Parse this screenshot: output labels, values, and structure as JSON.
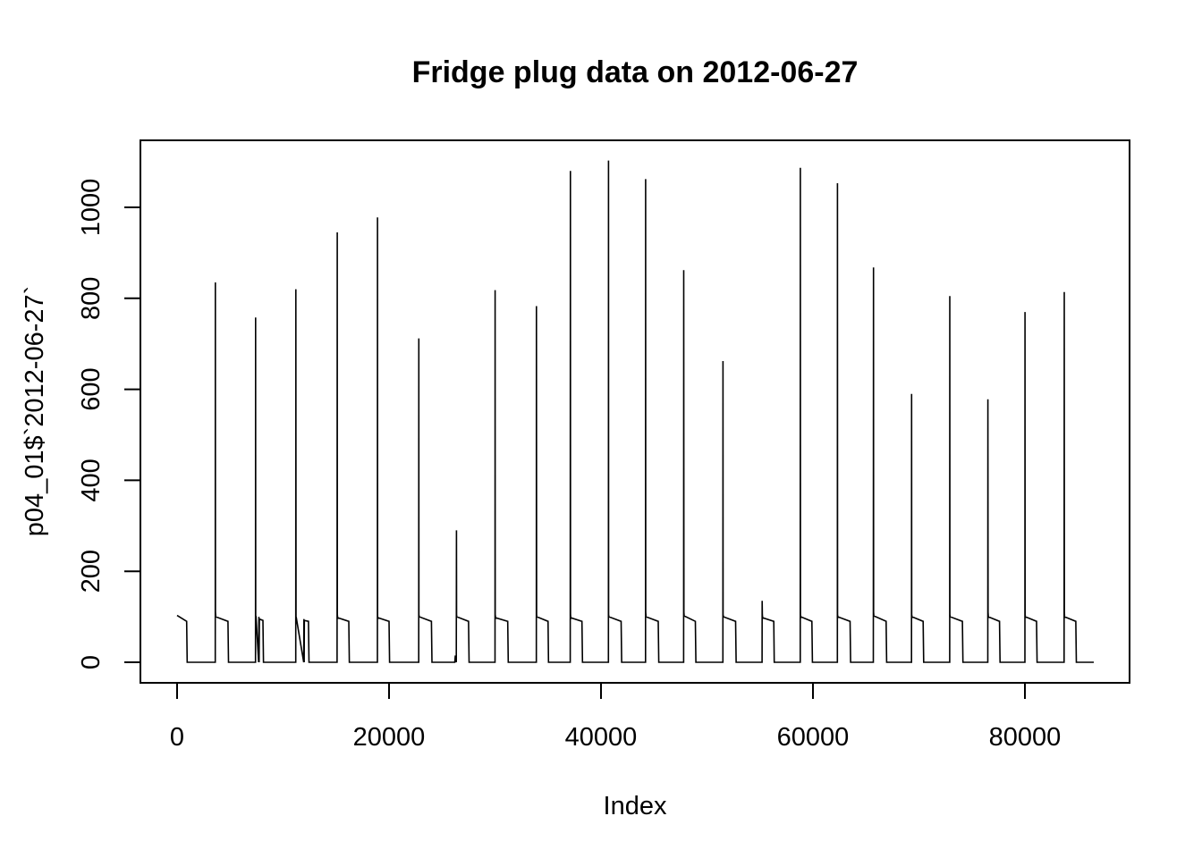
{
  "chart_data": {
    "type": "line",
    "title": "Fridge plug data on 2012-06-27",
    "xlabel": "Index",
    "ylabel": "p04_01$`2012-06-27`",
    "xlim": [
      0,
      86400
    ],
    "ylim": [
      0,
      1105
    ],
    "x_ticks": [
      0,
      20000,
      40000,
      60000,
      80000
    ],
    "x_tick_labels": [
      "0",
      "20000",
      "40000",
      "60000",
      "80000"
    ],
    "y_ticks": [
      0,
      200,
      400,
      600,
      800,
      1000
    ],
    "y_tick_labels": [
      "0",
      "200",
      "400",
      "600",
      "800",
      "1000"
    ],
    "grid": false,
    "legend": "none",
    "line_color": "#000000",
    "series": [
      {
        "x": [
          0,
          900,
          950,
          3600,
          3610,
          3620,
          3650,
          4800,
          4850,
          7400,
          7410,
          7420,
          7450,
          7700,
          7720,
          7740,
          7760,
          8100,
          8150,
          11200,
          11210,
          11220,
          11250,
          11950,
          11970,
          11990,
          12010,
          12400,
          12450,
          15100,
          15110,
          15120,
          15150,
          16200,
          16250,
          18900,
          18910,
          18920,
          18950,
          20000,
          20050,
          22800,
          22810,
          22820,
          22850,
          24000,
          24050,
          26200,
          26250,
          26350,
          26360,
          26370,
          26400,
          27500,
          27550,
          30000,
          30010,
          30020,
          30050,
          31200,
          31250,
          33900,
          33910,
          33920,
          33950,
          35000,
          35050,
          37100,
          37110,
          37120,
          37150,
          38200,
          38250,
          40700,
          40710,
          40720,
          40750,
          41900,
          41950,
          44200,
          44210,
          44220,
          44250,
          45400,
          45450,
          47800,
          47810,
          47820,
          47850,
          48900,
          48950,
          51500,
          51510,
          51520,
          51550,
          52700,
          52750,
          55200,
          55210,
          55220,
          55250,
          56300,
          56350,
          58800,
          58810,
          58820,
          58850,
          59900,
          59950,
          62300,
          62310,
          62320,
          62350,
          63500,
          63550,
          65700,
          65710,
          65720,
          65750,
          66900,
          66950,
          69300,
          69310,
          69320,
          69350,
          70400,
          70450,
          72900,
          72910,
          72920,
          72950,
          74100,
          74150,
          76500,
          76510,
          76520,
          76550,
          77600,
          77650,
          80000,
          80010,
          80020,
          80050,
          81100,
          81150,
          83700,
          83710,
          83720,
          83750,
          84800,
          84850,
          86500
        ],
        "y": [
          103,
          90,
          0,
          0,
          835,
          110,
          100,
          90,
          0,
          0,
          758,
          100,
          100,
          0,
          100,
          0,
          95,
          92,
          0,
          0,
          820,
          100,
          98,
          0,
          95,
          0,
          92,
          90,
          0,
          0,
          945,
          105,
          98,
          90,
          0,
          0,
          978,
          100,
          98,
          90,
          0,
          0,
          712,
          105,
          100,
          90,
          0,
          0,
          15,
          0,
          290,
          105,
          100,
          90,
          0,
          0,
          818,
          105,
          98,
          90,
          0,
          0,
          783,
          105,
          100,
          90,
          0,
          0,
          1080,
          105,
          98,
          90,
          0,
          0,
          1103,
          105,
          100,
          90,
          0,
          0,
          1062,
          110,
          100,
          90,
          0,
          0,
          862,
          110,
          102,
          90,
          0,
          0,
          662,
          105,
          100,
          90,
          0,
          0,
          135,
          105,
          98,
          90,
          0,
          0,
          1087,
          105,
          100,
          90,
          0,
          0,
          1053,
          105,
          100,
          90,
          0,
          0,
          868,
          110,
          102,
          90,
          0,
          0,
          590,
          105,
          100,
          90,
          0,
          0,
          805,
          105,
          100,
          90,
          0,
          0,
          578,
          110,
          100,
          90,
          0,
          0,
          770,
          105,
          100,
          90,
          0,
          0,
          814,
          110,
          100,
          90,
          0,
          0
        ]
      }
    ]
  }
}
